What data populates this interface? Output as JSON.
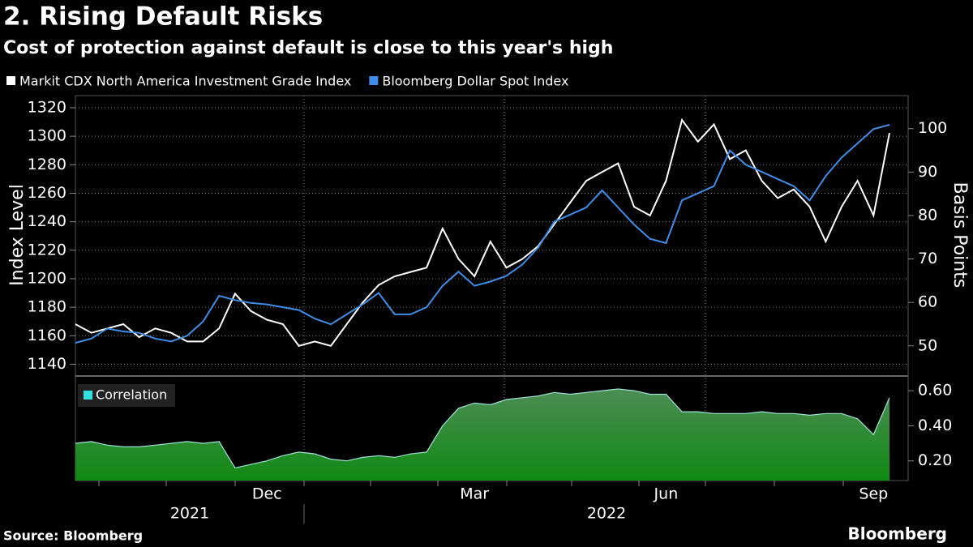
{
  "chart_data": [
    {
      "type": "line",
      "title": "2. Rising Default Risks",
      "subtitle": "Cost of protection against default is close to this year's high",
      "y_label": "Index Level",
      "y2_label": "Basis Points",
      "categories": [
        null,
        null,
        null,
        null,
        null,
        null,
        null,
        null,
        null,
        null,
        null,
        null,
        "Dec",
        null,
        null,
        null,
        null,
        null,
        null,
        null,
        null,
        null,
        null,
        null,
        null,
        "Mar",
        null,
        null,
        null,
        null,
        null,
        null,
        null,
        null,
        null,
        null,
        null,
        "Jun",
        null,
        null,
        null,
        null,
        null,
        null,
        null,
        null,
        null,
        null,
        null,
        null,
        "Sep",
        null
      ],
      "x_group_labels": [
        "2021",
        "2022"
      ],
      "series": [
        {
          "name": "Markit CDX North America Investment Grade Index",
          "color": "#ffffff",
          "axis": "y2",
          "values": [
            55,
            53,
            54,
            55,
            52,
            54,
            53,
            51,
            51,
            54,
            62,
            58,
            56,
            55,
            50,
            51,
            50,
            55,
            60,
            64,
            66,
            67,
            68,
            77,
            70,
            66,
            74,
            68,
            70,
            73,
            78,
            83,
            88,
            90,
            92,
            82,
            80,
            88,
            102,
            97,
            101,
            93,
            95,
            88,
            84,
            86,
            82,
            74,
            82,
            88,
            80,
            99
          ]
        },
        {
          "name": "Bloomberg Dollar Spot Index",
          "color": "#3d8ee8",
          "values": [
            1155,
            1158,
            1165,
            1163,
            1162,
            1158,
            1156,
            1160,
            1170,
            1188,
            1185,
            1183,
            1182,
            1180,
            1178,
            1172,
            1168,
            1175,
            1182,
            1190,
            1175,
            1175,
            1180,
            1195,
            1205,
            1195,
            1198,
            1202,
            1210,
            1222,
            1240,
            1245,
            1250,
            1262,
            1250,
            1238,
            1228,
            1225,
            1255,
            1260,
            1265,
            1290,
            1280,
            1275,
            1270,
            1265,
            1255,
            1272,
            1285,
            1295,
            1305,
            1308
          ]
        }
      ],
      "ylim": [
        1134,
        1328.5
      ],
      "yticks": [
        1140,
        1160,
        1180,
        1200,
        1220,
        1240,
        1260,
        1280,
        1300,
        1320
      ],
      "y2lim": [
        43.8,
        107.6
      ],
      "y2ticks": [
        50,
        60,
        70,
        80,
        90,
        100
      ],
      "grid": true
    },
    {
      "type": "area",
      "series": [
        {
          "name": "Correlation",
          "color": "#33e0e0",
          "values": [
            0.3,
            0.31,
            0.29,
            0.28,
            0.28,
            0.29,
            0.3,
            0.31,
            0.3,
            0.31,
            0.16,
            0.18,
            0.2,
            0.23,
            0.25,
            0.24,
            0.21,
            0.2,
            0.22,
            0.23,
            0.22,
            0.24,
            0.25,
            0.4,
            0.5,
            0.53,
            0.52,
            0.55,
            0.56,
            0.57,
            0.59,
            0.58,
            0.59,
            0.6,
            0.61,
            0.6,
            0.58,
            0.58,
            0.48,
            0.48,
            0.47,
            0.47,
            0.47,
            0.48,
            0.47,
            0.47,
            0.46,
            0.47,
            0.47,
            0.44,
            0.35,
            0.56
          ]
        }
      ],
      "ylim": [
        0.088,
        0.656
      ],
      "yticks": [
        {
          "value": 0.2,
          "label": "0.20"
        },
        {
          "value": 0.4,
          "label": "0.40"
        },
        {
          "value": 0.6,
          "label": "0.60"
        }
      ]
    }
  ],
  "source": "Source: Bloomberg",
  "brand": "Bloomberg"
}
